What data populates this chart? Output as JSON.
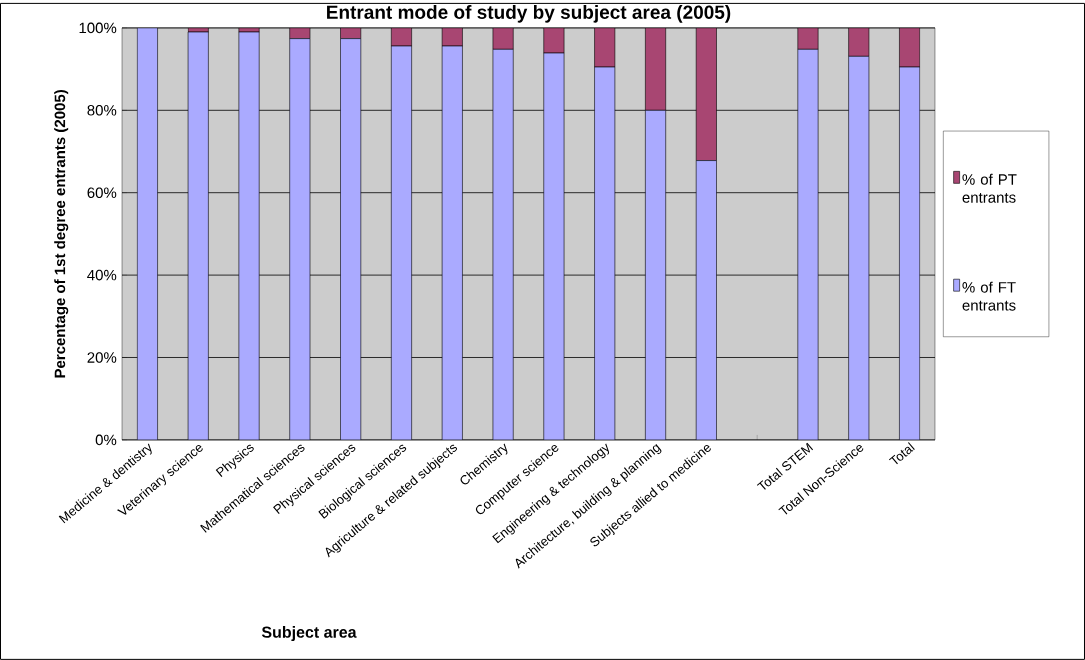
{
  "chart_data": {
    "type": "bar",
    "title": "Entrant mode of study by subject area (2005)",
    "xlabel": "Subject area",
    "ylabel": "Percentage of 1st degree entrants (2005)",
    "categories": [
      "Medicine & dentistry",
      "Veterinary science",
      "Physics",
      "Mathematical sciences",
      "Physical  sciences",
      "Biological  sciences",
      "Agriculture & related subjects",
      "Chemistry",
      "Computer  science",
      "Engineering & technology",
      "Architecture, building & planning",
      "Subjects allied to medicine",
      null,
      "Total STEM",
      "Total Non-Science",
      "Total"
    ],
    "series": [
      {
        "name": "% of FT entrants",
        "color": "#aaaaff",
        "values": [
          100,
          99,
          99,
          97.4,
          97.4,
          95.6,
          95.6,
          94.8,
          93.9,
          90.5,
          80,
          67.8,
          null,
          94.8,
          93.1,
          90.5
        ]
      },
      {
        "name": "% of PT entrants",
        "color": "#a84672",
        "values": [
          0,
          1,
          1,
          2.6,
          2.6,
          4.4,
          4.4,
          5.2,
          6.1,
          9.5,
          20,
          32.2,
          null,
          5.2,
          6.9,
          9.5
        ]
      }
    ],
    "stacked": true,
    "ylim": [
      0,
      100
    ],
    "yticks": [
      {
        "value": 0,
        "label": "0%"
      },
      {
        "value": 20,
        "label": "20%"
      },
      {
        "value": 40,
        "label": "40%"
      },
      {
        "value": 60,
        "label": "60%"
      },
      {
        "value": 80,
        "label": "80%"
      },
      {
        "value": 100,
        "label": "100%"
      }
    ],
    "grid": "y",
    "legend": "right"
  }
}
